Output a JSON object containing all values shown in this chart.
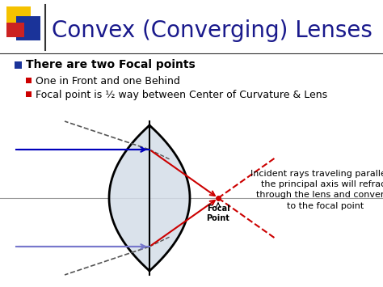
{
  "title": "Convex (Converging) Lenses",
  "title_color": "#1a1a8c",
  "title_fontsize": 20,
  "bg_color": "#ffffff",
  "bullet1": "There are two Focal points",
  "bullet2": "One in Front and one Behind",
  "bullet3": "Focal point is ½ way between Center of Curvature & Lens",
  "annotation": "Incident rays traveling parallel to\nthe principal axis will refract\nthrough the lens and converge\nto the focal point",
  "focal_label": "Focal\nPoint",
  "ray_color": "#0000bb",
  "ray_color2": "#7777cc",
  "refracted_color": "#cc0000",
  "dashed_color": "#555555",
  "lens_fill": "#d4dde8",
  "lens_edge": "#000000",
  "icon_yellow": "#f5c200",
  "icon_blue": "#1a3399",
  "icon_red": "#cc2222",
  "separator_color": "#333333",
  "bullet_blue": "#1a3399",
  "bullet_red": "#cc0000"
}
